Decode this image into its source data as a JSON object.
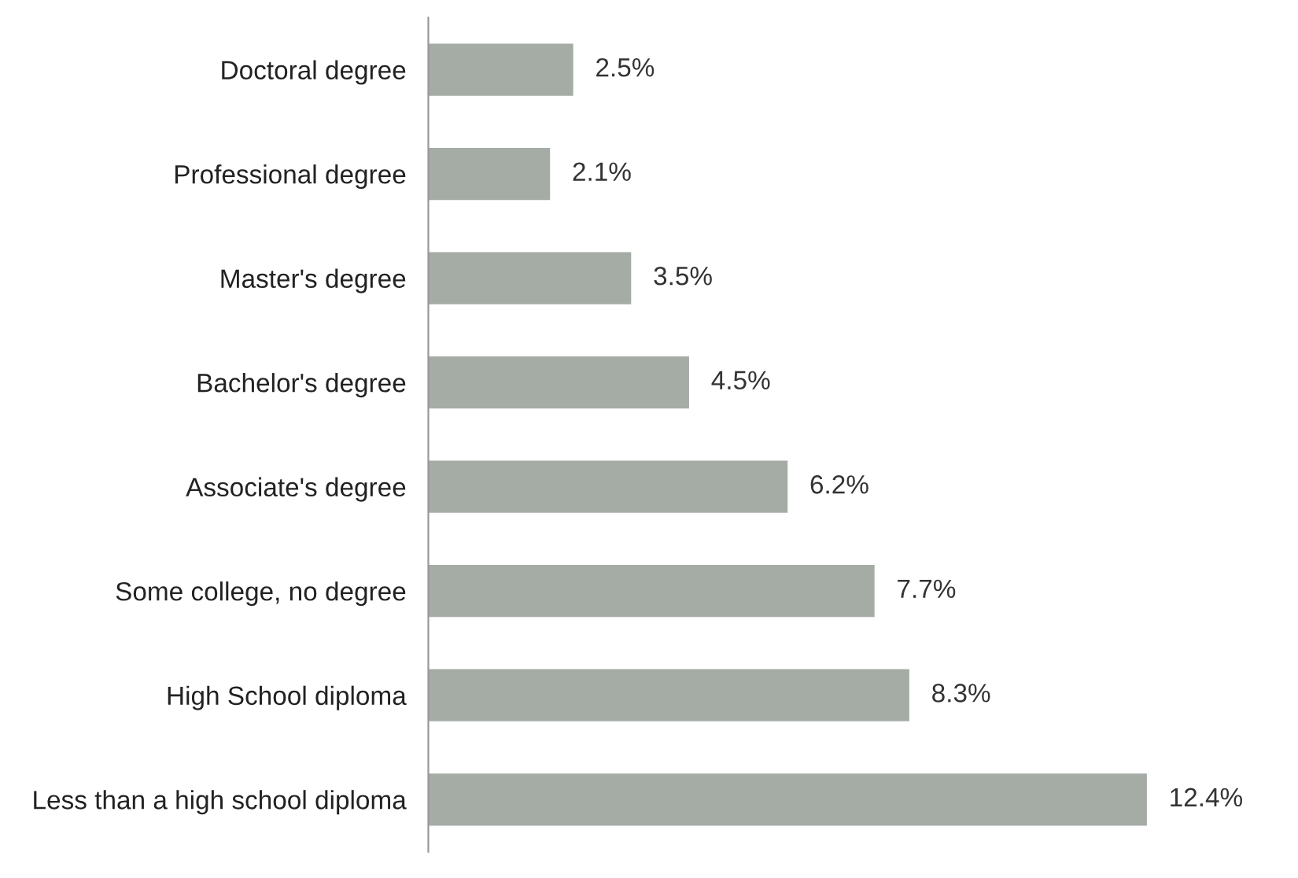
{
  "chart_data": {
    "type": "bar",
    "orientation": "horizontal",
    "categories": [
      "Doctoral degree",
      "Professional degree",
      "Master's degree",
      "Bachelor's degree",
      "Associate's degree",
      "Some college, no degree",
      "High School diploma",
      "Less than a high school diploma"
    ],
    "values": [
      2.5,
      2.1,
      3.5,
      4.5,
      6.2,
      7.7,
      8.3,
      12.4
    ],
    "value_labels": [
      "2.5%",
      "2.1%",
      "3.5%",
      "4.5%",
      "6.2%",
      "7.7%",
      "8.3%",
      "12.4%"
    ],
    "color": "#a5aca5"
  }
}
